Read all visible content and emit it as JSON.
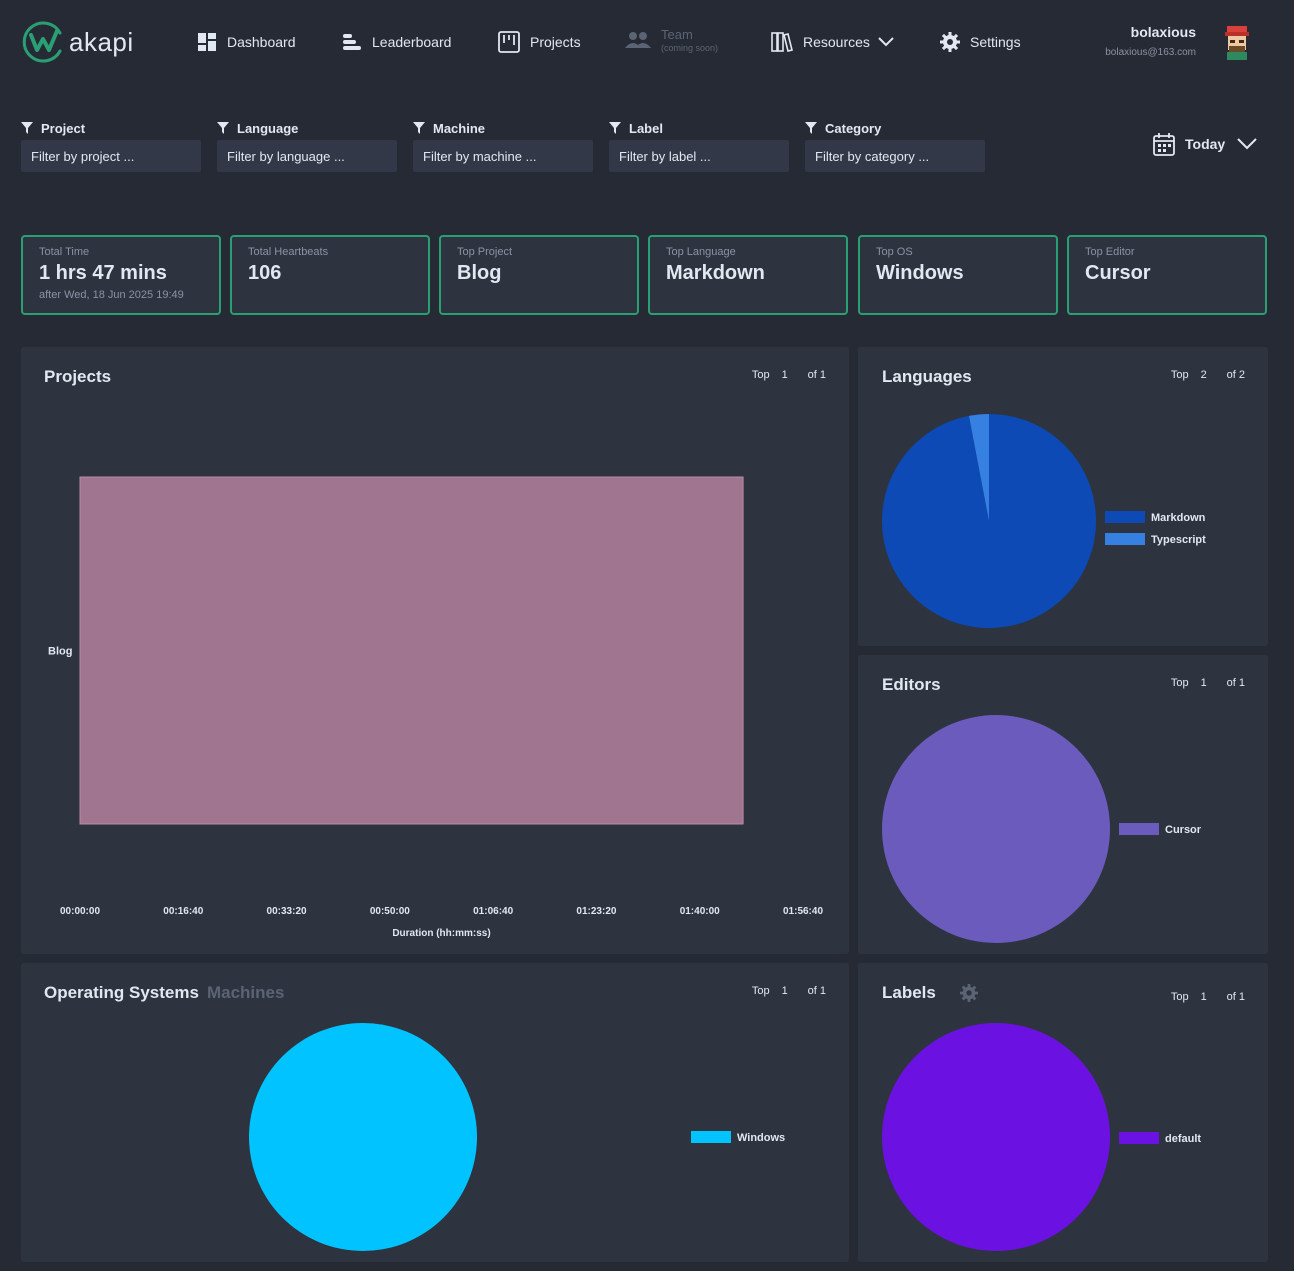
{
  "header": {
    "logo_text": "akapi",
    "nav": {
      "dashboard": "Dashboard",
      "leaderboard": "Leaderboard",
      "projects": "Projects",
      "team": "Team",
      "team_sub": "(coming soon)",
      "resources": "Resources",
      "settings": "Settings"
    },
    "user": {
      "name": "bolaxious",
      "email": "bolaxious@163.com"
    }
  },
  "filters": [
    {
      "label": "Project",
      "placeholder": "Filter by project ..."
    },
    {
      "label": "Language",
      "placeholder": "Filter by language ..."
    },
    {
      "label": "Machine",
      "placeholder": "Filter by machine ..."
    },
    {
      "label": "Label",
      "placeholder": "Filter by label ..."
    },
    {
      "label": "Category",
      "placeholder": "Filter by category ..."
    }
  ],
  "date_range": "Today",
  "stats": {
    "total_time": {
      "title": "Total Time",
      "value": "1 hrs 47 mins",
      "sub": "after Wed, 18 Jun 2025 19:49"
    },
    "total_heartbeats": {
      "title": "Total Heartbeats",
      "value": "106"
    },
    "top_project": {
      "title": "Top Project",
      "value": "Blog"
    },
    "top_language": {
      "title": "Top Language",
      "value": "Markdown"
    },
    "top_os": {
      "title": "Top OS",
      "value": "Windows"
    },
    "top_editor": {
      "title": "Top Editor",
      "value": "Cursor"
    }
  },
  "panels": {
    "projects": {
      "title": "Projects",
      "top_label": "Top",
      "top_n": "1",
      "of_label": "of 1"
    },
    "languages": {
      "title": "Languages",
      "top_label": "Top",
      "top_n": "2",
      "of_label": "of 2"
    },
    "editors": {
      "title": "Editors",
      "top_label": "Top",
      "top_n": "1",
      "of_label": "of 1"
    },
    "os": {
      "title": "Operating Systems",
      "alt_tab": "Machines",
      "top_label": "Top",
      "top_n": "1",
      "of_label": "of 1"
    },
    "labels": {
      "title": "Labels",
      "top_label": "Top",
      "top_n": "1",
      "of_label": "of 1"
    }
  },
  "colors": {
    "accent": "#2b9f74",
    "project_bar": "#a0758f",
    "markdown": "#0d4ab5",
    "typescript": "#3580e0",
    "cursor": "#6a5bbd",
    "windows": "#00c3ff",
    "default_label": "#6b12e3"
  },
  "chart_data": [
    {
      "type": "bar",
      "orientation": "horizontal",
      "categories": [
        "Blog"
      ],
      "values": [
        6420
      ],
      "xlabel": "Duration (hh:mm:ss)",
      "x_ticks": [
        0,
        1000,
        2000,
        3000,
        4000,
        5000,
        6000,
        7000
      ],
      "x_tick_labels": [
        "00:00:00",
        "00:16:40",
        "00:33:20",
        "00:50:00",
        "01:06:40",
        "01:23:20",
        "01:40:00",
        "01:56:40"
      ],
      "xlim": [
        0,
        7000
      ]
    },
    {
      "type": "pie",
      "categories": [
        "Markdown",
        "Typescript"
      ],
      "values": [
        97,
        3
      ],
      "legend": "right"
    },
    {
      "type": "pie",
      "categories": [
        "Cursor"
      ],
      "values": [
        100
      ],
      "legend": "right"
    },
    {
      "type": "pie",
      "categories": [
        "Windows"
      ],
      "values": [
        100
      ],
      "legend": "right"
    },
    {
      "type": "pie",
      "categories": [
        "default"
      ],
      "values": [
        100
      ],
      "legend": "right"
    }
  ]
}
